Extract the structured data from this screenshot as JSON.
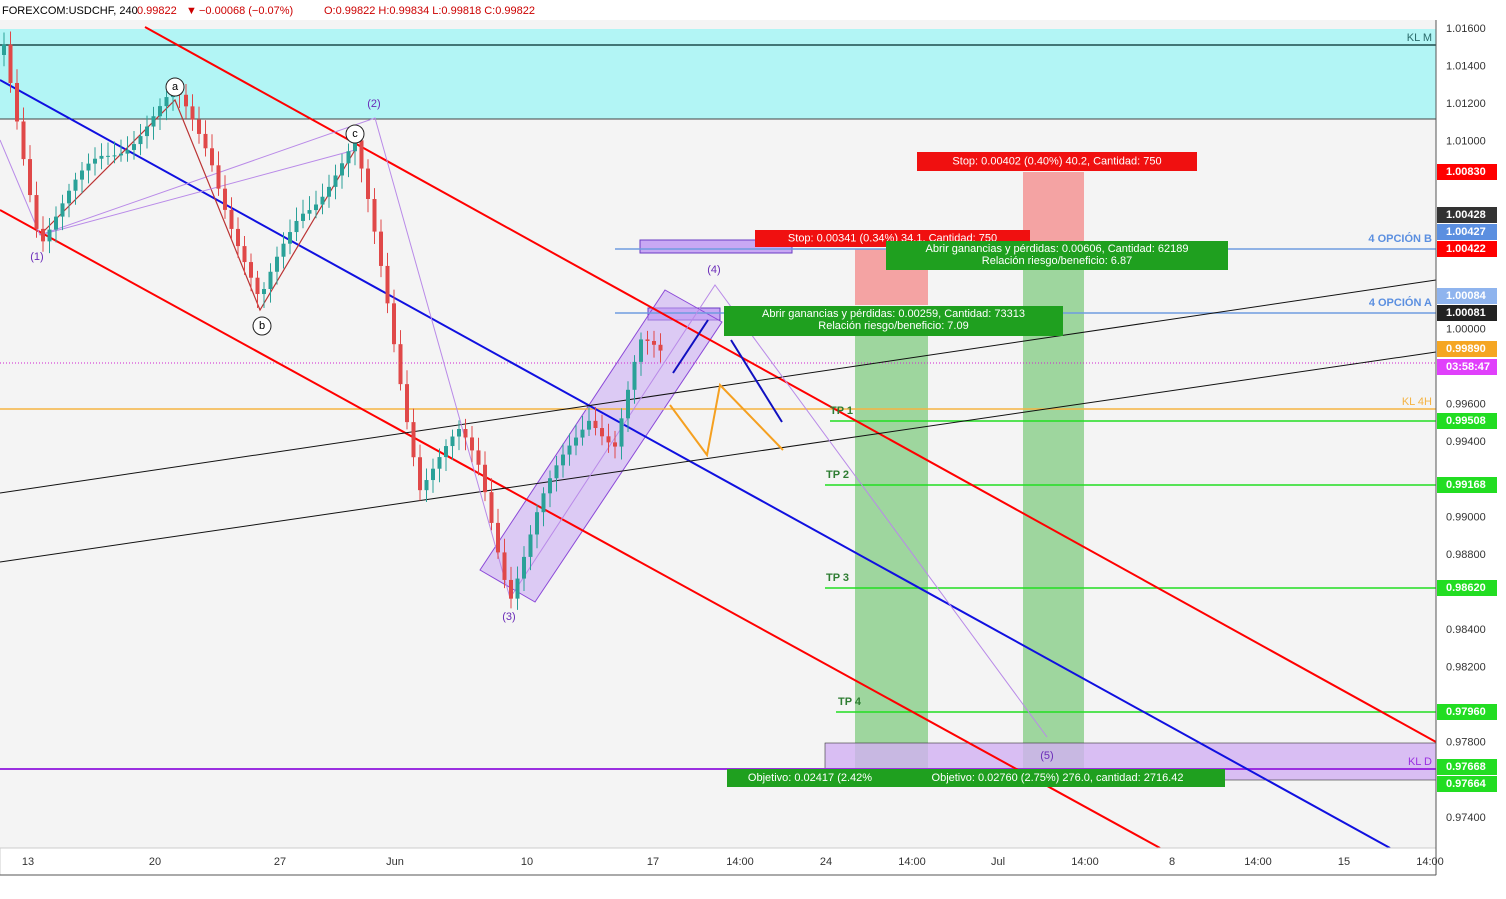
{
  "header": {
    "symbol": "FOREXCOM:USDCHF, 240",
    "last": "0.99822",
    "arrow": "▼",
    "change": "−0.00068 (−0.07%)",
    "ohlc": "O:0.99822 H:0.99834 L:0.99818 C:0.99822"
  },
  "price_axis": {
    "ticks": [
      "1.01600",
      "1.01400",
      "1.01200",
      "1.01000",
      "1.00000",
      "0.99600",
      "0.99400",
      "0.99000",
      "0.98800",
      "0.98400",
      "0.98200",
      "0.97800",
      "0.97400"
    ],
    "markers": [
      {
        "label": "1.00830",
        "color": "#ff0000"
      },
      {
        "label": "1.00428",
        "color": "#333333"
      },
      {
        "label": "1.00427",
        "color": "#5b8fe0"
      },
      {
        "label": "1.00422",
        "color": "#ff0000"
      },
      {
        "label": "1.00084",
        "color": "#8fb4ee"
      },
      {
        "label": "1.00081",
        "color": "#222222"
      },
      {
        "label": "0.99890",
        "color": "#f5a623"
      },
      {
        "label": "03:58:47",
        "color": "#e040fb"
      },
      {
        "label": "0.99508",
        "color": "#22dd22"
      },
      {
        "label": "0.99168",
        "color": "#22dd22"
      },
      {
        "label": "0.98620",
        "color": "#22dd22"
      },
      {
        "label": "0.97960",
        "color": "#22dd22"
      },
      {
        "label": "0.97668",
        "color": "#22dd22"
      },
      {
        "label": "0.97664",
        "color": "#22dd22"
      }
    ]
  },
  "time_axis": {
    "labels": [
      "13",
      "20",
      "27",
      "Jun",
      "10",
      "17",
      "14:00",
      "24",
      "14:00",
      "Jul",
      "14:00",
      "8",
      "14:00",
      "15",
      "14:00"
    ]
  },
  "waves": [
    "(1)",
    "(2)",
    "(3)",
    "(4)",
    "(5)",
    "a",
    "b",
    "c"
  ],
  "levels": [
    "KL M",
    "KL 4H",
    "KL D"
  ],
  "targets": [
    "TP 1",
    "TP 2",
    "TP 3",
    "TP 4"
  ],
  "options": [
    "4 OPCIÓN B",
    "4 OPCIÓN A"
  ],
  "positions": {
    "stop_b": "Stop: 0.00402 (0.40%) 40.2, Cantidad: 750",
    "profit_b": [
      "Abrir ganancias y pérdidas: 0.00606, Cantidad: 62189",
      "Relación riesgo/beneficio: 6.87"
    ],
    "stop_a": "Stop: 0.00341 (0.34%) 34.1, Cantidad: 750",
    "profit_a": [
      "Abrir ganancias y pérdidas: 0.00259, Cantidad: 73313",
      "Relación riesgo/beneficio: 7.09"
    ],
    "target_a": "Objetivo: 0.02417 (2.42%",
    "target_b": "Objetivo: 0.02760 (2.75%) 276.0, cantidad: 2716.42"
  }
}
